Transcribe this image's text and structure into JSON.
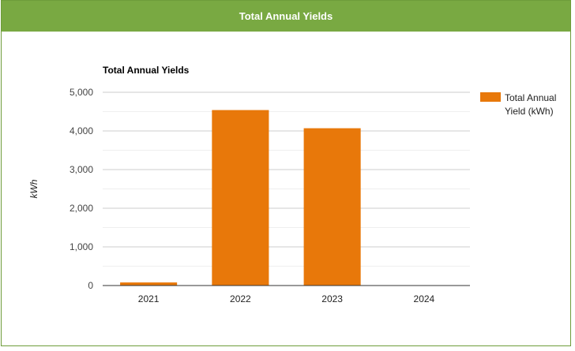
{
  "header": {
    "title": "Total Annual Yields"
  },
  "chart_data": {
    "type": "bar",
    "title": "Total Annual Yields",
    "xlabel": "",
    "ylabel": "kWh",
    "categories": [
      "2021",
      "2022",
      "2023",
      "2024"
    ],
    "series": [
      {
        "name": "Total Annual Yield (kWh)",
        "values": [
          80,
          4540,
          4070,
          0
        ]
      }
    ],
    "ylim": [
      0,
      5000
    ],
    "yticks": [
      0,
      1000,
      2000,
      3000,
      4000,
      5000
    ],
    "ytick_labels": [
      "0",
      "1,000",
      "2,000",
      "3,000",
      "4,000",
      "5,000"
    ],
    "grid": true,
    "legend_position": "right",
    "colors": {
      "bar": "#e8780a",
      "header": "#79a942"
    }
  }
}
